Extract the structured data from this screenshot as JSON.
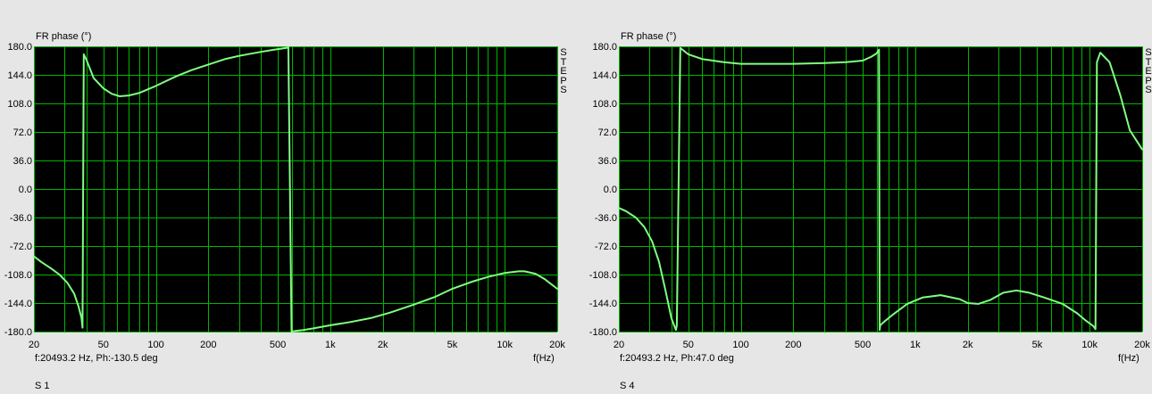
{
  "panels": [
    {
      "y_label": "FR phase (°)",
      "status": "f:20493.2 Hz, Ph:-130.5 deg",
      "x_unit": "f(Hz)",
      "name": "S 1",
      "side_label": [
        "S",
        "T",
        "E",
        "P",
        "S"
      ]
    },
    {
      "y_label": "FR phase (°)",
      "status": "f:20493.2 Hz, Ph:47.0 deg",
      "x_unit": "f(Hz)",
      "name": "S 4",
      "side_label": [
        "S",
        "T",
        "E",
        "P",
        "S"
      ]
    }
  ],
  "colors": {
    "background": "#e6e6e6",
    "plot_bg": "#000000",
    "grid": "#00b400",
    "trace": "#80ff80"
  },
  "chart_data": [
    {
      "type": "line",
      "title": "",
      "xlabel": "f(Hz)",
      "ylabel": "FR phase (°)",
      "x_scale": "log",
      "xlim": [
        20,
        20000
      ],
      "ylim": [
        -180,
        180
      ],
      "x_tick_labels": [
        "20",
        "50",
        "100",
        "200",
        "500",
        "1k",
        "2k",
        "5k",
        "10k",
        "20k"
      ],
      "x_ticks": [
        20,
        50,
        100,
        200,
        500,
        1000,
        2000,
        5000,
        10000,
        20000
      ],
      "y_tick_labels": [
        "180.0",
        "144.0",
        "108.0",
        "72.0",
        "36.0",
        "0.0",
        "-36.0",
        "-72.0",
        "-108.0",
        "-144.0",
        "-180.0"
      ],
      "y_ticks": [
        180,
        144,
        108,
        72,
        36,
        0,
        -36,
        -72,
        -108,
        -144,
        -180
      ],
      "grid": true,
      "series": [
        {
          "x": [
            20,
            22,
            25,
            28,
            31,
            34,
            36,
            37.5,
            38,
            38.6,
            40,
            44,
            50,
            56,
            62,
            70,
            80,
            100,
            130,
            160,
            200,
            250,
            300,
            400,
            480,
            560,
            575,
            600,
            640,
            700,
            800,
            1000,
            1300,
            1700,
            2200,
            3000,
            4000,
            5000,
            6500,
            8000,
            10000,
            12000,
            13000,
            15000,
            17000,
            20000
          ],
          "y": [
            -85,
            -92,
            -100,
            -108,
            -118,
            -132,
            -148,
            -163,
            -175,
            170,
            163,
            140,
            127,
            120,
            117,
            118,
            121,
            130,
            142,
            150,
            157,
            164,
            168,
            173,
            176,
            178,
            179,
            -180,
            -179,
            -178,
            -176,
            -172,
            -168,
            -163,
            -156,
            -146,
            -136,
            -126,
            -117,
            -111,
            -106,
            -104,
            -104,
            -107,
            -114,
            -126
          ]
        }
      ]
    },
    {
      "type": "line",
      "title": "",
      "xlabel": "f(Hz)",
      "ylabel": "FR phase (°)",
      "x_scale": "log",
      "xlim": [
        20,
        20000
      ],
      "ylim": [
        -180,
        180
      ],
      "x_tick_labels": [
        "20",
        "50",
        "100",
        "200",
        "500",
        "1k",
        "2k",
        "5k",
        "10k",
        "20k"
      ],
      "x_ticks": [
        20,
        50,
        100,
        200,
        500,
        1000,
        2000,
        5000,
        10000,
        20000
      ],
      "y_tick_labels": [
        "180.0",
        "144.0",
        "108.0",
        "72.0",
        "36.0",
        "0.0",
        "-36.0",
        "-72.0",
        "-108.0",
        "-144.0",
        "-180.0"
      ],
      "y_ticks": [
        180,
        144,
        108,
        72,
        36,
        0,
        -36,
        -72,
        -108,
        -144,
        -180
      ],
      "grid": true,
      "series": [
        {
          "x": [
            20,
            22,
            25,
            28,
            31,
            34,
            37,
            40,
            42,
            42.5,
            43,
            45,
            50,
            60,
            80,
            100,
            150,
            200,
            300,
            400,
            500,
            560,
            600,
            620,
            625,
            630,
            660,
            750,
            900,
            1100,
            1400,
            1800,
            2000,
            2300,
            2700,
            3200,
            3800,
            4500,
            5500,
            7000,
            8500,
            9500,
            10500,
            10800,
            11000,
            11500,
            13000,
            15000,
            17000,
            20000
          ],
          "y": [
            -24,
            -28,
            -36,
            -48,
            -66,
            -92,
            -128,
            -163,
            -175,
            -178,
            -172,
            178,
            170,
            164,
            160,
            158,
            158,
            158,
            159,
            160,
            162,
            167,
            171,
            176,
            -178,
            -172,
            -168,
            -158,
            -145,
            -137,
            -134,
            -139,
            -144,
            -145,
            -140,
            -131,
            -128,
            -131,
            -137,
            -145,
            -157,
            -166,
            -173,
            -177,
            160,
            172,
            160,
            118,
            74,
            50
          ]
        }
      ]
    }
  ]
}
